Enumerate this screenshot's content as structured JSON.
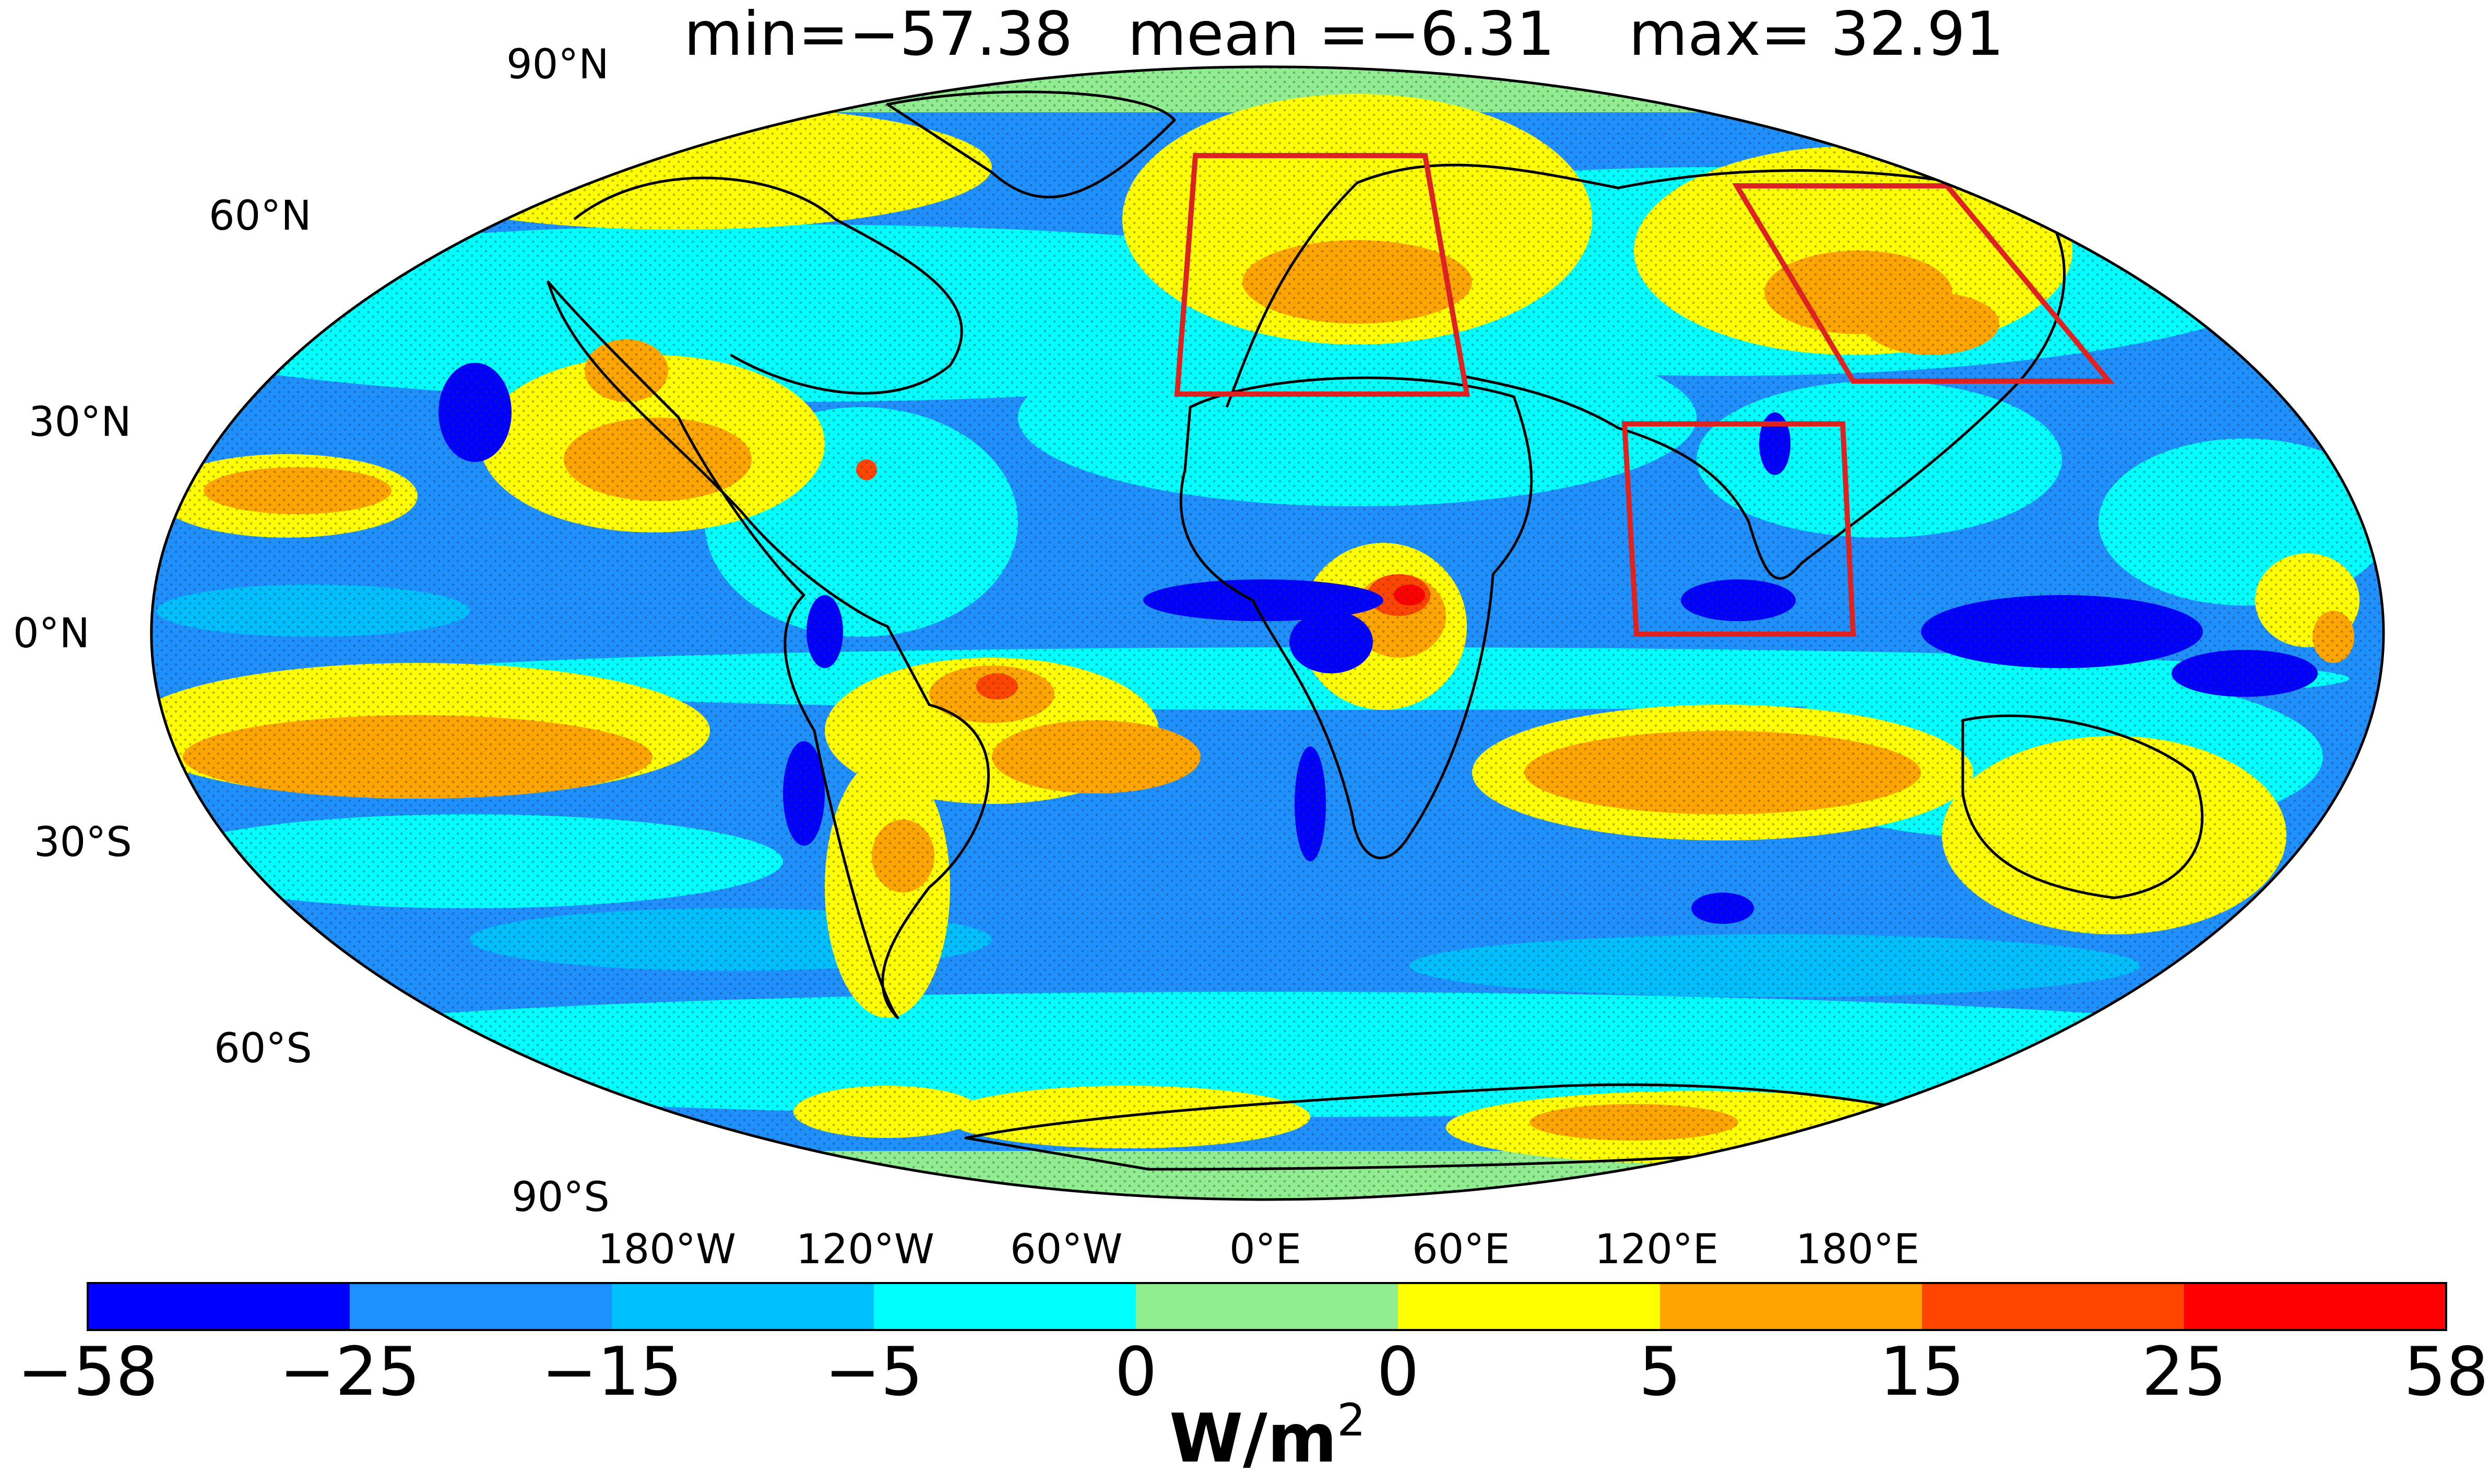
{
  "stats": {
    "min": "min=−57.38",
    "mean": "mean =−6.31",
    "max": "max= 32.91"
  },
  "lat_labels": [
    "90°N",
    "60°N",
    "30°N",
    "0°N",
    "30°S",
    "60°S",
    "90°S"
  ],
  "lon_labels": [
    "180°W",
    "120°W",
    "60°W",
    "0°E",
    "60°E",
    "120°E",
    "180°E"
  ],
  "colorbar": {
    "unit_base": "W/m",
    "unit_sup": "2",
    "tick_labels": [
      "−58",
      "−25",
      "−15",
      "−5",
      "0",
      "0",
      "5",
      "15",
      "25",
      "58"
    ],
    "bins": [
      {
        "from": -58,
        "to": -25,
        "color": "#0000ff"
      },
      {
        "from": -25,
        "to": -15,
        "color": "#1e90ff"
      },
      {
        "from": -15,
        "to": -5,
        "color": "#00bfff"
      },
      {
        "from": -5,
        "to": 0,
        "color": "#00ffff"
      },
      {
        "from": 0,
        "to": 0,
        "color": "#90ee90"
      },
      {
        "from": 0,
        "to": 5,
        "color": "#ffff00"
      },
      {
        "from": 5,
        "to": 15,
        "color": "#ffa500"
      },
      {
        "from": 15,
        "to": 25,
        "color": "#ff4500"
      },
      {
        "from": 25,
        "to": 58,
        "color": "#ff0000"
      }
    ]
  },
  "region_box_color": "#dd2222",
  "background_color": "#1e90ff"
}
